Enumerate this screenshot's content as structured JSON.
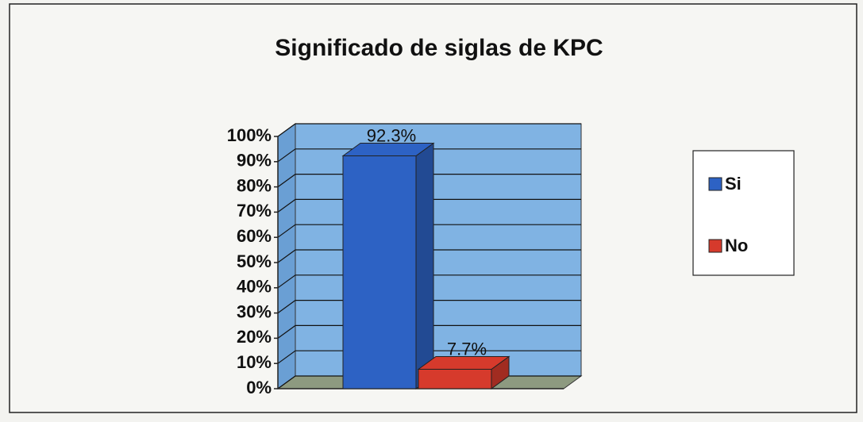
{
  "chart_data": {
    "type": "bar",
    "title": "Significado de siglas de KPC",
    "categories": [
      null
    ],
    "series": [
      {
        "name": "Si",
        "color": "#2d62c4",
        "values": [
          92.3
        ],
        "value_labels": [
          "92.3%"
        ]
      },
      {
        "name": "No",
        "color": "#d63a2c",
        "values": [
          7.7
        ],
        "value_labels": [
          "7.7%"
        ]
      }
    ],
    "ylim": [
      0,
      100
    ],
    "yticks": [
      {
        "value": 0,
        "label": "0%"
      },
      {
        "value": 10,
        "label": "10%"
      },
      {
        "value": 20,
        "label": "20%"
      },
      {
        "value": 30,
        "label": "30%"
      },
      {
        "value": 40,
        "label": "40%"
      },
      {
        "value": 50,
        "label": "50%"
      },
      {
        "value": 60,
        "label": "60%"
      },
      {
        "value": 70,
        "label": "70%"
      },
      {
        "value": 80,
        "label": "80%"
      },
      {
        "value": 90,
        "label": "90%"
      },
      {
        "value": 100,
        "label": "100%"
      }
    ],
    "grid": true,
    "legend": "right"
  }
}
